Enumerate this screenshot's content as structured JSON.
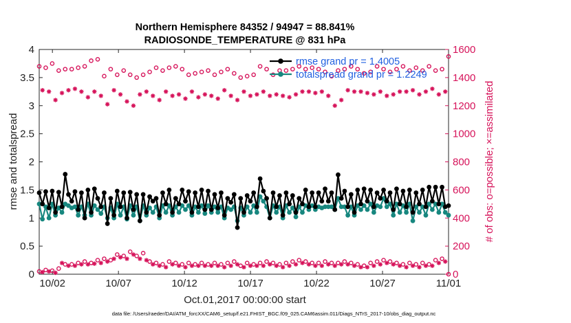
{
  "chart_data": {
    "type": "line",
    "title_line1": "Northern Hemisphere 84352 / 94947 = 88.841%",
    "title_line2": "RADIOSONDE_TEMPERATURE @ 831 hPa",
    "xlabel": "Oct.01,2017 00:00:00 start",
    "ylabel_left": "rmse and totalspread",
    "ylabel_right": "# of obs: o=possible; ×=assimilated",
    "footer": "data file: /Users/raeder/DAI/ATM_forcXX/CAM6_setup/f.e21.FHIST_BGC.f09_025.CAM6assim.011/Diags_NTrS_2017-10/obs_diag_output.nc",
    "xlim": [
      1,
      32
    ],
    "ylim_left": [
      0,
      4
    ],
    "ylim_right": [
      0,
      1600
    ],
    "x_ticks": [
      "10/02",
      "10/07",
      "10/12",
      "10/17",
      "10/22",
      "10/27",
      "11/01"
    ],
    "y_ticks_left": [
      "0",
      "0.5",
      "1",
      "1.5",
      "2",
      "2.5",
      "3",
      "3.5",
      "4"
    ],
    "y_ticks_right": [
      "0",
      "200",
      "400",
      "600",
      "800",
      "1000",
      "1200",
      "1400",
      "1600"
    ],
    "legend": [
      "rmse grand pr = 1.4005",
      "totalspread grand pr = 1.2249"
    ],
    "colors": {
      "rmse": "#000000",
      "spread": "#17877f",
      "obs": "#d6135a"
    },
    "series": [
      {
        "name": "rmse",
        "values": [
          1.45,
          1.25,
          1.47,
          1.18,
          1.48,
          1.1,
          1.46,
          1.2,
          1.78,
          1.42,
          1.3,
          1.47,
          1.15,
          1.45,
          1.0,
          1.5,
          1.1,
          1.52,
          1.35,
          1.2,
          1.45,
          0.9,
          1.35,
          1.05,
          1.48,
          1.2,
          1.45,
          1.0,
          1.46,
          1.15,
          1.42,
          0.95,
          1.42,
          1.1,
          1.38,
          1.3,
          1.35,
          1.05,
          1.45,
          1.25,
          1.5,
          1.1,
          1.35,
          1.25,
          1.5,
          1.3,
          1.47,
          1.1,
          1.45,
          1.2,
          1.5,
          1.15,
          1.48,
          1.15,
          1.42,
          1.18,
          1.45,
          1.05,
          1.35,
          1.28,
          1.42,
          0.83,
          1.35,
          1.1,
          1.4,
          1.3,
          1.45,
          1.2,
          1.7,
          1.48,
          1.35,
          1.0,
          1.45,
          1.2,
          1.4,
          1.05,
          1.45,
          1.25,
          1.4,
          1.1,
          1.35,
          1.25,
          1.5,
          1.2,
          1.45,
          1.2,
          1.45,
          1.3,
          1.52,
          1.3,
          1.45,
          1.15,
          1.77,
          1.35,
          1.48,
          1.2,
          1.42,
          1.1,
          1.5,
          1.25,
          1.52,
          1.3,
          1.5,
          1.2,
          1.45,
          1.35,
          1.5,
          1.3,
          1.45,
          1.15,
          1.52,
          1.25,
          1.48,
          1.2,
          1.5,
          1.1,
          1.45,
          1.25,
          1.5,
          1.2,
          1.55,
          1.3,
          1.55,
          1.25,
          1.55,
          1.2,
          1.22
        ]
      },
      {
        "name": "totalspread",
        "values": [
          1.25,
          0.98,
          1.2,
          1.0,
          1.25,
          1.05,
          1.18,
          1.1,
          1.25,
          1.22,
          1.18,
          1.2,
          1.05,
          1.2,
          1.05,
          1.25,
          1.05,
          1.22,
          1.15,
          1.08,
          1.2,
          1.0,
          1.18,
          1.0,
          1.25,
          1.05,
          1.2,
          0.98,
          1.22,
          1.05,
          1.2,
          0.95,
          1.22,
          1.05,
          1.18,
          1.1,
          1.2,
          1.0,
          1.22,
          1.1,
          1.22,
          1.05,
          1.2,
          1.1,
          1.22,
          1.15,
          1.22,
          1.05,
          1.2,
          1.1,
          1.22,
          1.08,
          1.22,
          1.1,
          1.2,
          1.1,
          1.2,
          1.0,
          1.18,
          1.15,
          1.2,
          0.95,
          1.18,
          1.05,
          1.2,
          1.1,
          1.22,
          1.1,
          1.38,
          1.3,
          1.2,
          1.0,
          1.22,
          1.1,
          1.2,
          1.0,
          1.22,
          1.1,
          1.18,
          1.02,
          1.2,
          1.1,
          1.22,
          1.15,
          1.22,
          1.15,
          1.2,
          1.18,
          1.2,
          1.2,
          1.2,
          1.15,
          1.35,
          1.2,
          1.2,
          1.05,
          1.2,
          1.05,
          1.22,
          1.15,
          1.22,
          1.15,
          1.25,
          1.1,
          1.22,
          1.2,
          1.35,
          1.2,
          1.25,
          1.05,
          1.25,
          1.1,
          1.22,
          1.1,
          1.25,
          0.95,
          1.2,
          1.1,
          1.2,
          1.05,
          1.25,
          1.15,
          1.25,
          1.1,
          1.25,
          1.1,
          1.05
        ]
      },
      {
        "name": "possible",
        "values": [
          1480,
          1390,
          1470,
          1410,
          1500,
          1350,
          1450,
          1380,
          1460,
          1420,
          1460,
          1380,
          1470,
          1420,
          1480,
          1390,
          1520,
          1440,
          1530,
          1450,
          1410,
          1370,
          1460,
          1420,
          1420,
          1380,
          1450,
          1340,
          1420,
          1310,
          1400,
          1330,
          1420,
          1370,
          1440,
          1390,
          1470,
          1380,
          1450,
          1360,
          1470,
          1380,
          1480,
          1400,
          1460,
          1350,
          1420,
          1380,
          1430,
          1360,
          1440,
          1390,
          1450,
          1380,
          1420,
          1350,
          1440,
          1420,
          1460,
          1390,
          1430,
          1370,
          1400,
          1360,
          1410,
          1390,
          1420,
          1400,
          1480,
          1420,
          1460,
          1380,
          1420,
          1400,
          1450,
          1380,
          1450,
          1360,
          1460,
          1390,
          1480,
          1420,
          1460,
          1400,
          1470,
          1390,
          1460,
          1410,
          1440,
          1380,
          1410,
          1400,
          1450,
          1370,
          1460,
          1420,
          1480,
          1390,
          1460,
          1400,
          1430,
          1390,
          1440,
          1380,
          1480,
          1400,
          1460,
          1370,
          1440,
          1390,
          1460,
          1420,
          1480,
          1400,
          1450,
          1420,
          1470,
          1400,
          1450,
          1410,
          1480,
          1420,
          1450,
          1380,
          1460,
          1400,
          1550
        ]
      },
      {
        "name": "assimilated",
        "values": [
          1340,
          1310,
          1320,
          1300,
          1350,
          1240,
          1280,
          1290,
          1330,
          1310,
          1300,
          1320,
          1280,
          1300,
          1350,
          1260,
          1380,
          1300,
          1360,
          1270,
          1290,
          1210,
          1280,
          1310,
          1260,
          1280,
          1280,
          1230,
          1300,
          1200,
          1250,
          1280,
          1320,
          1300,
          1310,
          1270,
          1310,
          1240,
          1330,
          1300,
          1320,
          1270,
          1340,
          1280,
          1320,
          1250,
          1300,
          1300,
          1290,
          1260,
          1300,
          1280,
          1300,
          1270,
          1310,
          1250,
          1290,
          1310,
          1320,
          1270,
          1290,
          1240,
          1310,
          1300,
          1310,
          1270,
          1300,
          1280,
          1360,
          1300,
          1330,
          1270,
          1290,
          1280,
          1330,
          1270,
          1320,
          1260,
          1330,
          1280,
          1360,
          1300,
          1330,
          1300,
          1360,
          1290,
          1340,
          1300,
          1330,
          1270,
          1320,
          1200,
          1330,
          1240,
          1350,
          1310,
          1370,
          1300,
          1340,
          1300,
          1320,
          1290,
          1300,
          1280,
          1340,
          1300,
          1330,
          1270,
          1320,
          1280,
          1330,
          1300,
          1350,
          1300,
          1340,
          1310,
          1340,
          1280,
          1330,
          1300,
          1360,
          1320,
          1340,
          1280,
          1350,
          1300,
          1380
        ]
      },
      {
        "name": "possible_low",
        "values": [
          20,
          15,
          30,
          20,
          25,
          10,
          40,
          80,
          70,
          60,
          70,
          60,
          80,
          70,
          90,
          70,
          80,
          75,
          100,
          80,
          110,
          90,
          100,
          110,
          140,
          120,
          130,
          110,
          160,
          140,
          130,
          110,
          150,
          100,
          90,
          70,
          80,
          60,
          70,
          50,
          90,
          70,
          80,
          60,
          70,
          50,
          80,
          60,
          70,
          60,
          80,
          60,
          70,
          60,
          80,
          60,
          70,
          50,
          80,
          60,
          90,
          70,
          60,
          50,
          80,
          60,
          70,
          60,
          80,
          60,
          90,
          70,
          80,
          60,
          70,
          50,
          80,
          60,
          90,
          70,
          100,
          80,
          90,
          70,
          80,
          60,
          80,
          60,
          90,
          70,
          80,
          60,
          80,
          70,
          90,
          70,
          80,
          60,
          70,
          50,
          60,
          50,
          80,
          60,
          90,
          70,
          100,
          80,
          90,
          70,
          80,
          60,
          70,
          50,
          80,
          60,
          70,
          50,
          80,
          60,
          70,
          60,
          100,
          80,
          110,
          90,
          0
        ]
      }
    ]
  }
}
